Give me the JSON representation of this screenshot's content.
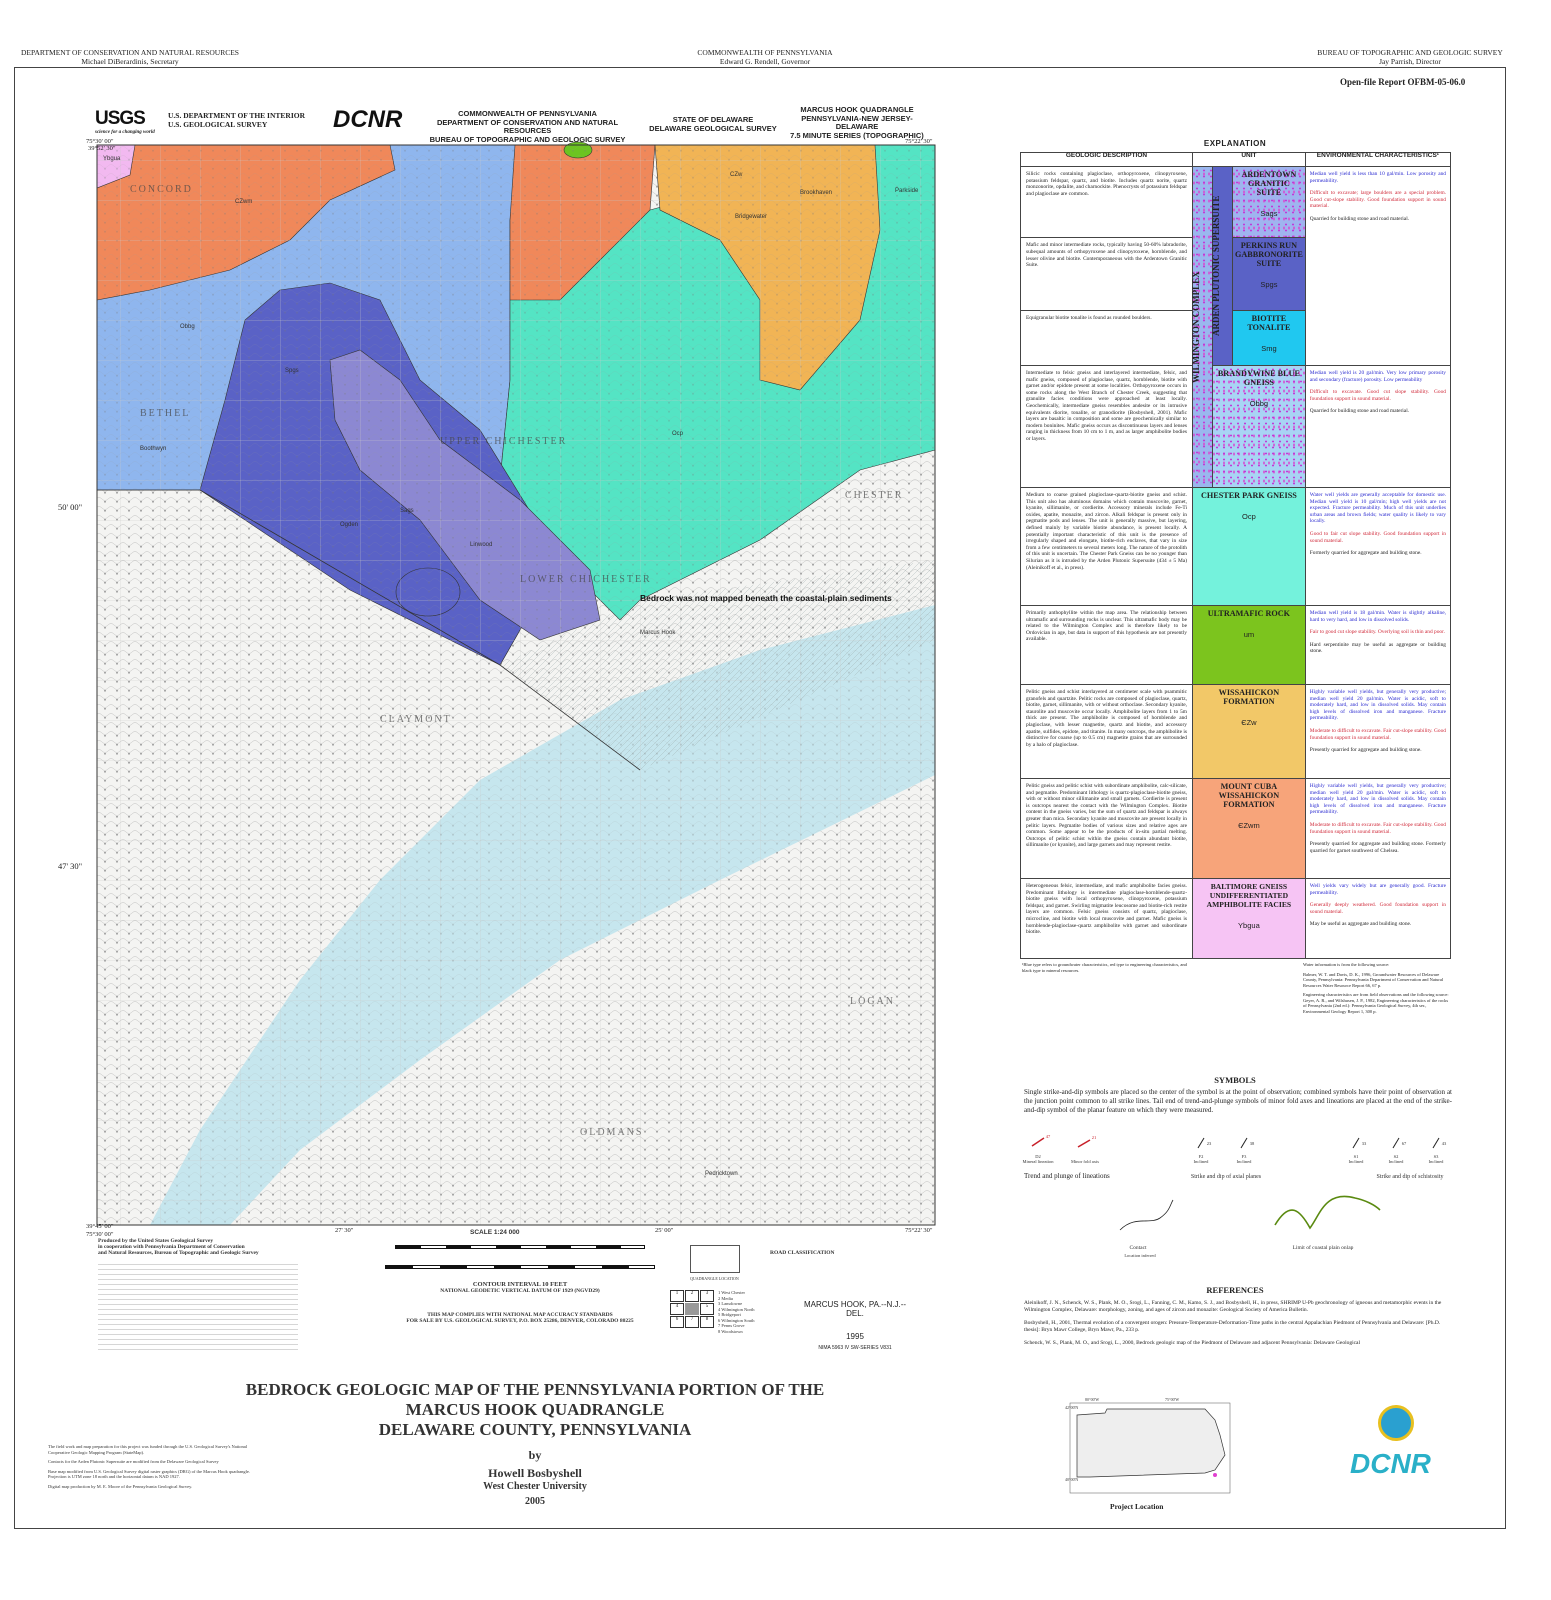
{
  "header": {
    "left": [
      "DEPARTMENT OF CONSERVATION AND NATURAL RESOURCES",
      "Michael DiBerardinis, Secretary"
    ],
    "center": [
      "COMMONWEALTH OF PENNSYLVANIA",
      "Edward G. Rendell, Governor"
    ],
    "right": [
      "BUREAU OF TOPOGRAPHIC AND GEOLOGIC SURVEY",
      "Jay Parrish, Director"
    ],
    "report": "Open-file Report   OFBM-05-06.0"
  },
  "map_header": {
    "usgs": "USGS",
    "usgs_tag": "science for a changing world",
    "usgs_dept": [
      "U.S. DEPARTMENT OF THE INTERIOR",
      "U.S. GEOLOGICAL SURVEY"
    ],
    "dcnr": "DCNR",
    "pa": [
      "COMMONWEALTH OF PENNSYLVANIA",
      "DEPARTMENT OF CONSERVATION AND NATURAL RESOURCES",
      "BUREAU OF TOPOGRAPHIC AND GEOLOGIC SURVEY"
    ],
    "de": [
      "STATE OF DELAWARE",
      "DELAWARE GEOLOGICAL SURVEY"
    ],
    "quad": [
      "MARCUS HOOK QUADRANGLE",
      "PENNSYLVANIA-NEW JERSEY-DELAWARE",
      "7.5 MINUTE SERIES (TOPOGRAPHIC)"
    ]
  },
  "map": {
    "corner_labels": {
      "tl_lon": "75°30' 00\"",
      "tl_lat": "39°52' 30\"",
      "tr_lon": "75°22' 30\"",
      "tr_lat": "39°52' 30\"",
      "bl_lon": "75°30' 00\"",
      "bl_lat": "39°45' 00\"",
      "br_lon": "75°22' 30\"",
      "br_lat": "39°45' 00\""
    },
    "edge_labels": [
      "50' 00\"",
      "47' 30\"",
      "27' 30\"",
      "25' 00\""
    ],
    "place_names": [
      "CONCORD",
      "BETHEL",
      "UPPER CHICHESTER",
      "CHESTER",
      "LOWER CHICHESTER",
      "CLAYMONT",
      "LOGAN",
      "OLDMANS",
      "Marcus Hook",
      "Brookhaven",
      "Parkside",
      "Boothwyn",
      "Ogden",
      "Pedricktown",
      "Bridgewater",
      "Linwood"
    ],
    "unit_labels": [
      "CZwm",
      "Obbg",
      "Spgs",
      "Sags",
      "Ocp",
      "CZw",
      "Ybgua"
    ],
    "annotation": "Bedrock was not mapped beneath the coastal-plain sediments",
    "colors": {
      "CZwm": "#f0885a",
      "Obbg": "#8fb6ee",
      "Spgs": "#5a62c6",
      "Sags": "#8c88d2",
      "Smg": "#20c8f0",
      "Ocp": "#54e4c4",
      "CZw": "#f1b455",
      "um": "#6cc421",
      "Ybgua": "#f2b9f0",
      "river": "#c6e6ee"
    }
  },
  "map_footer": {
    "produced": [
      "Produced by the United States Geological Survey",
      "in cooperation with Pennsylvania Department of Conservation",
      "and Natural Resources, Bureau of Topographic and Geologic Survey"
    ],
    "scale": "SCALE 1:24 000",
    "contour": "CONTOUR INTERVAL 10 FEET",
    "datum": "NATIONAL GEODETIC VERTICAL DATUM OF 1929 (NGVD29)",
    "accuracy": "THIS MAP COMPLIES WITH NATIONAL MAP ACCURACY STANDARDS",
    "sale": "FOR SALE BY U.S. GEOLOGICAL SURVEY, P.O. BOX 25286, DENVER, COLORADO 80225",
    "road_class": "ROAD CLASSIFICATION",
    "quad_location": "QUADRANGLE LOCATION",
    "quad_name": "MARCUS HOOK, PA.--N.J.--DEL.",
    "year": "1995",
    "nima": "NIMA 5963 IV SW-SERIES V831",
    "adjoining": [
      "1 West Chester",
      "2 Media",
      "3 Lansdowne",
      "4 Wilmington North",
      "5 Bridgeport",
      "6 Wilmington South",
      "7 Penns Grove",
      "8 Woodstown"
    ]
  },
  "title": {
    "line1": "BEDROCK GEOLOGIC MAP OF THE PENNSYLVANIA PORTION OF THE",
    "line2": "MARCUS HOOK QUADRANGLE",
    "line3": "DELAWARE COUNTY, PENNSYLVANIA",
    "by": "by",
    "author": "Howell Bosbyshell",
    "affiliation": "West Chester University",
    "year": "2005"
  },
  "notes": [
    "The field work and map preparation for this project was funded through the U.S. Geological Survey's National Cooperative Geologic Mapping Program (StateMap).",
    "Contacts for the Arden Plutonic Supersuite are modified from the Delaware Geological Survey",
    "Base map modified from U.S. Geological Survey digital raster graphics (DRG) of the Marcus Hook quadrangle. Projection is UTM zone 18 north and the horizontal datum is NAD 1927.",
    "Digital map production by M. E. Moore of the Pennsylvania Geological Survey."
  ],
  "explanation": {
    "title": "EXPLANATION",
    "headers": [
      "GEOLOGIC DESCRIPTION",
      "UNIT",
      "ENVIRONMENTAL CHARACTERISTICS¹"
    ],
    "complex": "WILMINGTON COMPLEX",
    "supersuite": "ARDEN PLUTONIC SUPERSUITE",
    "rows": [
      {
        "name": "ARDENTOWN GRANITIC SUITE",
        "symbol": "Sags",
        "color": "#9fb4ef",
        "desc": "Silicic rocks containing plagioclase, orthopyroxene, clinopyroxene, potassium feldspar, quartz, and biotite. Includes quartz norite, quartz monzonorite, opdalite, and charnockite. Phenocrysts of potassium feldspar and plagioclase are common.",
        "water": "Median well yield is less than 10 gal/min. Low porosity and permeability.",
        "eng": "Difficult to excavate; large boulders are a special problem. Good cut-slope stability. Good foundation support in sound material.",
        "min": "Quarried for building stone and road material."
      },
      {
        "name": "PERKINS RUN GABBRONORITE SUITE",
        "symbol": "Spgs",
        "color": "#5a62c6",
        "desc": "Mafic and minor intermediate rocks, typically having 50-60% labradorite, subequal amounts of orthopyroxene and clinopyroxene, hornblende, and lesser olivine and biotite. Contemporaneous with the Ardentown Granitic Suite."
      },
      {
        "name": "BIOTITE TONALITE",
        "symbol": "Smg",
        "color": "#20c8f0",
        "desc": "Equigranular biotite tonalite is found as rounded boulders."
      },
      {
        "name": "BRANDYWINE BLUE GNEISS",
        "symbol": "Obbg",
        "color": "#9fd0f2",
        "desc": "Intermediate to felsic gneiss and interlayered intermediate, felsic, and mafic gneiss, composed of plagioclase, quartz, hornblende, biotite with garnet and/or epidote present at some localities. Orthopyroxene occurs in some rocks along the West Branch of Chester Creek, suggesting that granulite facies conditions were approached at least locally. Geochemically, intermediate gneiss resembles andesite or its intrusive equivalents diorite, tonalite, or granodiorite (Bosbyshell, 2001). Mafic layers are basaltic in composition and some are geochemically similar to modern boninites. Mafic gneiss occurs as discontinuous layers and lenses ranging in thickness from 10 cm to 1 m, and as larger amphibolite bodies or layers.",
        "water": "Median well yield is 20 gal/min. Very low primary porosity and secondary (fracture) porosity. Low permeability",
        "eng": "Difficult to excavate. Good cut slope stability. Good foundation support in sound material.",
        "min": "Quarried for building stone and road material."
      },
      {
        "name": "CHESTER PARK GNEISS",
        "symbol": "Ocp",
        "color": "#74f2dc",
        "desc": "Medium to coarse grained plagioclase-quartz-biotite gneiss and schist. This unit also has aluminous domains which contain muscovite, garnet, kyanite, sillimanite, or cordierite. Accessory minerals include Fe-Ti oxides, apatite, monazite, and zircon. Alkali feldspar is present only in pegmatite pods and lenses. The unit is generally massive, but layering, defined mainly by variable biotite abundance, is present locally. A potentially important characteristic of this unit is the presence of irregularly shaped and elongate, biotite-rich enclaves, that vary in size from a few centimeters to several meters long. The nature of the protolith of this unit is uncertain. The Chester Park Gneiss can be no younger than Silurian as it is intruded by the Arden Plutonic Supersuite (434 ± 5 Ma) (Aleinikoff et al., in press).",
        "water": "Water well yields are generally acceptable for domestic use. Median well yield is 10 gal/min; high well yields are not expected. Fracture permeability. Much of this unit underlies urban areas and brown fields; water quality is likely to vary locally.",
        "eng": "Good to fair cut slope stability. Good foundation support in sound material.",
        "min": "Formerly quarried for aggregate and building stone."
      },
      {
        "name": "ULTRAMAFIC ROCK",
        "symbol": "um",
        "color": "#7cc41e",
        "desc": "Primarily anthophyllite within the map area. The relationship between ultramafic and surrounding rocks is unclear. This ultramafic body may be related to the Wilmington Complex and is therefore likely to be Ordovician in age, but data in support of this hypothesis are not presently available.",
        "water": "Median well yield is 18 gal/min. Water is slightly alkaline, hard to very hard, and low in dissolved solids.",
        "eng": "Fair to good cut slope stability. Overlying soil is thin and poor.",
        "min": "Hard serpentinite may be useful as aggregate or building stone."
      },
      {
        "name": "WISSAHICKON FORMATION",
        "symbol": "ЄZw",
        "color": "#f2c868",
        "desc": "Pelitic gneiss and schist interlayered at centimeter scale with psammitic granofels and quartzite. Pelitic rocks are composed of plagioclase, quartz, biotite, garnet, sillimanite, with or without orthoclase. Secondary kyanite, staurolite and muscovite occur locally. Amphibolite layers from 1 to 5m thick are present. The amphibolite is composed of hornblende and plagioclase, with lesser magnetite, quartz and biotite, and accessory apatite, sulfides, epidote, and titanite. In many outcrops, the amphibolite is distinctive for coarse (up to 0.5 cm) magnetite grains that are surrounded by a halo of plagioclase.",
        "water": "Highly variable well yields, but generally very productive; median well yield 20 gal/min. Water is acidic, soft to moderately hard, and low in dissolved solids. May contain high levels of dissolved iron and manganese. Fracture permeability.",
        "eng": "Moderate to difficult to excavate. Fair cut-slope stability. Good foundation support in sound material.",
        "min": "Presently quarried for aggregate and building stone."
      },
      {
        "name": "MOUNT CUBA WISSAHICKON FORMATION",
        "symbol": "ЄZwm",
        "color": "#f7a47a",
        "desc": "Pelitic gneiss and pelitic schist with subordinate amphibolite, calc-silicate, and pegmatite. Predominant lithology is quartz-plagioclase-biotite gneiss, with or without minor sillimanite and small garnets. Cordierite is present is outcrops nearest the contact with the Wilmington Complex. Biotite content in the gneiss varies, but the sum of quartz and feldspar is always greater than mica. Secondary kyanite and muscovite are present locally in pelitic layers. Pegmatite bodies of various sizes and relative ages are common. Some appear to be the products of in-situ partial melting. Outcrops of pelitic schist within the gneiss contain abundant biotite, sillimanite (or kyanite), and large garnets and may represent restite.",
        "water": "Highly variable well yields, but generally very productive; median well yield 20 gal/min. Water is acidic, soft to moderately hard, and low in dissolved solids. May contain high levels of dissolved iron and manganese. Fracture permeability.",
        "eng": "Moderate to difficult to excavate. Fair cut-slope stability. Good foundation support in sound material.",
        "min": "Presently quarried for aggregate and building stone. Formerly quarried for garnet southwest of Chelsea."
      },
      {
        "name": "BALTIMORE GNEISS UNDIFFERENTIATED AMPHIBOLITE FACIES",
        "symbol": "Ybgua",
        "color": "#f6c4f4",
        "desc": "Heterogeneous felsic, intermediate, and mafic amphibolite facies gneiss. Predominant lithology is intermediate plagioclase-hornblende-quartz-biotite gneiss with local orthopyroxene, clinopyroxene, potassium feldspar, and garnet. Swirling migmatite leucosome and biotite-rich restite layers are common. Felsic gneiss consists of quartz, plagioclase, microcline, and biotite with local muscovite and garnet. Mafic gneiss is hornblende-plagioclase-quartz amphibolite with garnet and subordinate biotite.",
        "water": "Well yields vary widely but are generally good. Fracture permeability.",
        "eng": "Generally deeply weathered. Good foundation support in sound material.",
        "min": "May be useful as aggregate and building stone."
      }
    ],
    "footnote": "¹Blue type refers to groundwater characteristics, red type to engineering characteristics, and black type to mineral resources.",
    "sources": [
      "Water information is from the following source:",
      "Balmer, W. T. and Davis, D. K., 1996, Groundwater Resources of Delaware County, Pennsylvania: Pennsylvania Department of Conservation and Natural Resources Water Resource Report 66, 67 p.",
      "Engineering characteristics are from field observations and the following source:",
      "Geyer, A. R., and Wilshusen, J. P., 1982, Engineering characteristics of the rocks of Pennsylvania (2nd ed.): Pennsylvania Geological Survey, 4th ser., Environmental Geology Report 1, 300 p."
    ]
  },
  "symbols": {
    "title": "SYMBOLS",
    "text": "Single strike-and-dip symbols are placed so the center of the symbol is at the point of observation; combined symbols have their point of observation at the junction point common to all strike lines. Tail end of trend-and-plunge symbols of minor fold axes and lineations are placed  at the end of the strike-and-dip symbol of the planar feature on which they were measured.",
    "items": [
      {
        "code": "D2",
        "label": "Mineral lineation",
        "val": "47"
      },
      {
        "code": "",
        "label": "Minor fold axis",
        "val": "21"
      },
      {
        "code": "F2",
        "label": "Inclined",
        "val": "23"
      },
      {
        "code": "F3",
        "label": "Inclined",
        "val": "38"
      },
      {
        "code": "S1",
        "label": "Inclined",
        "val": "33"
      },
      {
        "code": "S2",
        "label": "Inclined",
        "val": "67"
      },
      {
        "code": "S3",
        "label": "Inclined",
        "val": "43"
      }
    ],
    "groups": [
      "Trend and plunge of lineations",
      "Strike and dip of axial planes",
      "Strike and dip of schistosity"
    ],
    "contact": "Contact",
    "contact_sub": "Location inferred",
    "onlap": "Limit of coastal plain onlap"
  },
  "references": {
    "title": "REFERENCES",
    "items": [
      "Aleinikoff, J. N., Schenck, W. S., Plank, M. O., Srogi, L., Fanning, C. M., Kamo, S. J., and Bosbyshell, H., in press, SHRIMP U-Pb geochronology of igneous and metamorphic events in the Wilmington Complex, Delaware: morphology, zoning, and ages of zircon and monazite: Geological Society of America Bulletin.",
      "Bosbyshell, H., 2001, Thermal evolution of a convergent orogen: Pressure-Temperature-Deformation-Time paths in the central Appalachian Piedmont of Pennsylvania and Delaware: [Ph.D. thesis]: Bryn Mawr College, Bryn Mawr, Pa., 233 p.",
      "Schenck, W. S., Plank, M. O., and Srogi, L., 2000, Bedrock geologic map of the Piedmont of Delaware and adjacent Pennsylvania: Delaware Geological"
    ]
  },
  "location": {
    "label": "Project Location",
    "ticks": [
      "80°00'W",
      "75°00'W",
      "42°00'N",
      "40°00'N"
    ]
  },
  "dcnr_logo": "DCNR"
}
